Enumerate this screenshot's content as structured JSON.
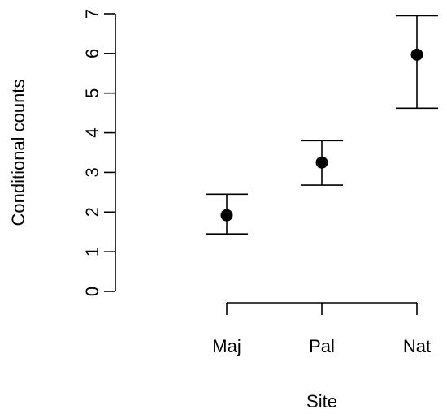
{
  "chart_data": {
    "type": "scatter",
    "xlabel": "Site",
    "ylabel": "Conditional counts",
    "categories": [
      "Maj",
      "Pal",
      "Nat"
    ],
    "series": [
      {
        "values": [
          1.92,
          3.25,
          5.97
        ],
        "lower": [
          1.45,
          2.68,
          4.62
        ],
        "upper": [
          2.45,
          3.8,
          6.95
        ]
      }
    ],
    "ylim": [
      0,
      7
    ],
    "yticks": [
      0,
      1,
      2,
      3,
      4,
      5,
      6,
      7
    ],
    "grid": false,
    "error_bars": true
  }
}
